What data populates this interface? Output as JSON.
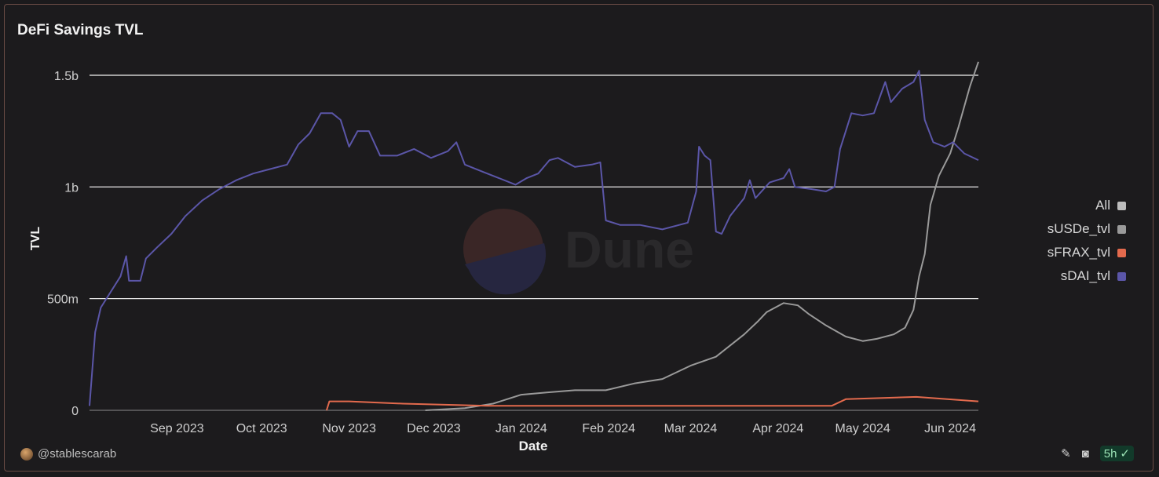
{
  "chart_data": {
    "type": "line",
    "title": "DeFi Savings TVL",
    "xlabel": "Date",
    "ylabel": "TVL",
    "ylim": [
      0,
      1.57
    ],
    "yticks": [
      {
        "value": 0,
        "label": "0"
      },
      {
        "value": 0.5,
        "label": "500m"
      },
      {
        "value": 1.0,
        "label": "1b"
      },
      {
        "value": 1.5,
        "label": "1.5b"
      }
    ],
    "xlim": [
      "2023-08-01",
      "2024-06-11"
    ],
    "xticks": [
      {
        "date": "2023-09-01",
        "label": "Sep 2023"
      },
      {
        "date": "2023-10-01",
        "label": "Oct 2023"
      },
      {
        "date": "2023-11-01",
        "label": "Nov 2023"
      },
      {
        "date": "2023-12-01",
        "label": "Dec 2023"
      },
      {
        "date": "2024-01-01",
        "label": "Jan 2024"
      },
      {
        "date": "2024-02-01",
        "label": "Feb 2024"
      },
      {
        "date": "2024-03-01",
        "label": "Mar 2024"
      },
      {
        "date": "2024-04-01",
        "label": "Apr 2024"
      },
      {
        "date": "2024-05-01",
        "label": "May 2024"
      },
      {
        "date": "2024-06-01",
        "label": "Jun 2024"
      }
    ],
    "grid": true,
    "legend_position": "right",
    "legend": [
      {
        "name": "All",
        "color": "#bdbdbd"
      },
      {
        "name": "sUSDe_tvl",
        "color": "#9a9a9a"
      },
      {
        "name": "sFRAX_tvl",
        "color": "#e36a4d"
      },
      {
        "name": "sDAI_tvl",
        "color": "#5b56a8"
      }
    ],
    "series": [
      {
        "name": "sDAI_tvl",
        "color": "#5b56a8",
        "points": [
          [
            "2023-08-01",
            0.02
          ],
          [
            "2023-08-03",
            0.35
          ],
          [
            "2023-08-05",
            0.46
          ],
          [
            "2023-08-08",
            0.52
          ],
          [
            "2023-08-12",
            0.6
          ],
          [
            "2023-08-14",
            0.69
          ],
          [
            "2023-08-15",
            0.58
          ],
          [
            "2023-08-19",
            0.58
          ],
          [
            "2023-08-21",
            0.68
          ],
          [
            "2023-08-25",
            0.73
          ],
          [
            "2023-08-30",
            0.79
          ],
          [
            "2023-09-04",
            0.87
          ],
          [
            "2023-09-10",
            0.94
          ],
          [
            "2023-09-16",
            0.99
          ],
          [
            "2023-09-22",
            1.03
          ],
          [
            "2023-09-28",
            1.06
          ],
          [
            "2023-10-04",
            1.08
          ],
          [
            "2023-10-10",
            1.1
          ],
          [
            "2023-10-14",
            1.19
          ],
          [
            "2023-10-18",
            1.24
          ],
          [
            "2023-10-22",
            1.33
          ],
          [
            "2023-10-26",
            1.33
          ],
          [
            "2023-10-29",
            1.3
          ],
          [
            "2023-11-01",
            1.18
          ],
          [
            "2023-11-04",
            1.25
          ],
          [
            "2023-11-08",
            1.25
          ],
          [
            "2023-11-12",
            1.14
          ],
          [
            "2023-11-18",
            1.14
          ],
          [
            "2023-11-24",
            1.17
          ],
          [
            "2023-11-30",
            1.13
          ],
          [
            "2023-12-06",
            1.16
          ],
          [
            "2023-12-09",
            1.2
          ],
          [
            "2023-12-12",
            1.1
          ],
          [
            "2023-12-18",
            1.07
          ],
          [
            "2023-12-24",
            1.04
          ],
          [
            "2023-12-30",
            1.01
          ],
          [
            "2024-01-03",
            1.04
          ],
          [
            "2024-01-07",
            1.06
          ],
          [
            "2024-01-11",
            1.12
          ],
          [
            "2024-01-14",
            1.13
          ],
          [
            "2024-01-20",
            1.09
          ],
          [
            "2024-01-26",
            1.1
          ],
          [
            "2024-01-29",
            1.11
          ],
          [
            "2024-01-31",
            0.85
          ],
          [
            "2024-02-05",
            0.83
          ],
          [
            "2024-02-12",
            0.83
          ],
          [
            "2024-02-20",
            0.81
          ],
          [
            "2024-02-26",
            0.83
          ],
          [
            "2024-02-29",
            0.84
          ],
          [
            "2024-03-03",
            0.98
          ],
          [
            "2024-03-04",
            1.18
          ],
          [
            "2024-03-06",
            1.14
          ],
          [
            "2024-03-08",
            1.12
          ],
          [
            "2024-03-10",
            0.8
          ],
          [
            "2024-03-12",
            0.79
          ],
          [
            "2024-03-15",
            0.87
          ],
          [
            "2024-03-20",
            0.95
          ],
          [
            "2024-03-22",
            1.03
          ],
          [
            "2024-03-24",
            0.95
          ],
          [
            "2024-03-29",
            1.02
          ],
          [
            "2024-04-03",
            1.04
          ],
          [
            "2024-04-05",
            1.08
          ],
          [
            "2024-04-07",
            1.0
          ],
          [
            "2024-04-13",
            0.99
          ],
          [
            "2024-04-18",
            0.98
          ],
          [
            "2024-04-21",
            1.0
          ],
          [
            "2024-04-23",
            1.17
          ],
          [
            "2024-04-27",
            1.33
          ],
          [
            "2024-05-01",
            1.32
          ],
          [
            "2024-05-05",
            1.33
          ],
          [
            "2024-05-09",
            1.47
          ],
          [
            "2024-05-11",
            1.38
          ],
          [
            "2024-05-15",
            1.44
          ],
          [
            "2024-05-19",
            1.47
          ],
          [
            "2024-05-21",
            1.52
          ],
          [
            "2024-05-23",
            1.3
          ],
          [
            "2024-05-26",
            1.2
          ],
          [
            "2024-05-30",
            1.18
          ],
          [
            "2024-06-02",
            1.2
          ],
          [
            "2024-06-06",
            1.15
          ],
          [
            "2024-06-11",
            1.12
          ]
        ]
      },
      {
        "name": "sUSDe_tvl",
        "color": "#9a9a9a",
        "points": [
          [
            "2023-11-28",
            0.0
          ],
          [
            "2023-12-12",
            0.01
          ],
          [
            "2023-12-22",
            0.03
          ],
          [
            "2024-01-01",
            0.07
          ],
          [
            "2024-01-10",
            0.08
          ],
          [
            "2024-01-20",
            0.09
          ],
          [
            "2024-01-31",
            0.09
          ],
          [
            "2024-02-10",
            0.12
          ],
          [
            "2024-02-20",
            0.14
          ],
          [
            "2024-03-01",
            0.2
          ],
          [
            "2024-03-10",
            0.24
          ],
          [
            "2024-03-20",
            0.34
          ],
          [
            "2024-03-25",
            0.4
          ],
          [
            "2024-03-28",
            0.44
          ],
          [
            "2024-04-03",
            0.48
          ],
          [
            "2024-04-08",
            0.47
          ],
          [
            "2024-04-12",
            0.43
          ],
          [
            "2024-04-18",
            0.38
          ],
          [
            "2024-04-25",
            0.33
          ],
          [
            "2024-05-01",
            0.31
          ],
          [
            "2024-05-06",
            0.32
          ],
          [
            "2024-05-12",
            0.34
          ],
          [
            "2024-05-16",
            0.37
          ],
          [
            "2024-05-19",
            0.45
          ],
          [
            "2024-05-21",
            0.6
          ],
          [
            "2024-05-23",
            0.7
          ],
          [
            "2024-05-25",
            0.92
          ],
          [
            "2024-05-28",
            1.05
          ],
          [
            "2024-06-01",
            1.15
          ],
          [
            "2024-06-04",
            1.27
          ],
          [
            "2024-06-08",
            1.45
          ],
          [
            "2024-06-11",
            1.56
          ]
        ]
      },
      {
        "name": "sFRAX_tvl",
        "color": "#e36a4d",
        "points": [
          [
            "2023-10-24",
            0.0
          ],
          [
            "2023-10-25",
            0.04
          ],
          [
            "2023-11-01",
            0.04
          ],
          [
            "2023-11-20",
            0.03
          ],
          [
            "2023-12-20",
            0.02
          ],
          [
            "2024-01-20",
            0.02
          ],
          [
            "2024-02-20",
            0.02
          ],
          [
            "2024-03-20",
            0.02
          ],
          [
            "2024-04-20",
            0.02
          ],
          [
            "2024-04-25",
            0.05
          ],
          [
            "2024-05-20",
            0.06
          ],
          [
            "2024-06-11",
            0.04
          ]
        ]
      }
    ]
  },
  "footer": {
    "author": "@stablescarab",
    "refresh_badge": "5h"
  },
  "watermark": "Dune"
}
